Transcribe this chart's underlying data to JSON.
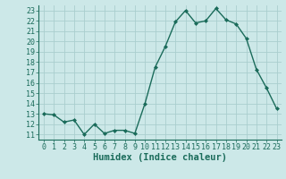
{
  "x": [
    0,
    1,
    2,
    3,
    4,
    5,
    6,
    7,
    8,
    9,
    10,
    11,
    12,
    13,
    14,
    15,
    16,
    17,
    18,
    19,
    20,
    21,
    22,
    23
  ],
  "y": [
    13.0,
    12.9,
    12.2,
    12.4,
    11.0,
    12.0,
    11.1,
    11.4,
    11.4,
    11.1,
    14.0,
    17.5,
    19.5,
    21.9,
    23.0,
    21.8,
    22.0,
    23.2,
    22.1,
    21.7,
    20.3,
    17.3,
    15.5,
    13.5
  ],
  "line_color": "#1a6b5a",
  "marker": "D",
  "marker_size": 2.0,
  "bg_color": "#cce8e8",
  "grid_color": "#aacece",
  "xlabel": "Humidex (Indice chaleur)",
  "xlim": [
    -0.5,
    23.5
  ],
  "ylim": [
    10.5,
    23.5
  ],
  "yticks": [
    11,
    12,
    13,
    14,
    15,
    16,
    17,
    18,
    19,
    20,
    21,
    22,
    23
  ],
  "xticks": [
    0,
    1,
    2,
    3,
    4,
    5,
    6,
    7,
    8,
    9,
    10,
    11,
    12,
    13,
    14,
    15,
    16,
    17,
    18,
    19,
    20,
    21,
    22,
    23
  ],
  "tick_fontsize": 6.0,
  "label_fontsize": 7.5,
  "label_color": "#1a6b5a",
  "linewidth": 1.0
}
